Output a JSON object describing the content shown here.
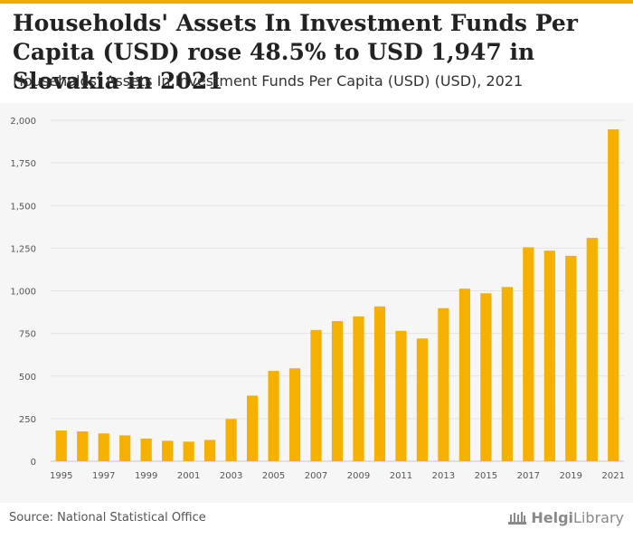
{
  "title": "Households' Assets In Investment Funds Per Capita (USD) rose 48.5% to USD 1,947 in Slovakia in 2021",
  "subtitle": "Households' Assets In Investment Funds Per Capita (USD) (USD), 2021",
  "source": "Source: National Statistical Office",
  "logo": {
    "part1": "Helgi",
    "part2": "Library"
  },
  "colors": {
    "bar": "#f5b000",
    "accent": "#f2ae00",
    "grid": "#e3e3e3",
    "panel": "#f6f6f6"
  },
  "chart_data": {
    "type": "bar",
    "title": "Households' Assets In Investment Funds Per Capita (USD) (USD), 2021",
    "xlabel": "",
    "ylabel": "",
    "ylim": [
      0,
      2000
    ],
    "yticks": [
      0,
      250,
      500,
      750,
      1000,
      1250,
      1500,
      1750,
      2000
    ],
    "ytick_labels": [
      "0",
      "250",
      "500",
      "750",
      "1,000",
      "1,250",
      "1,500",
      "1,750",
      "2,000"
    ],
    "categories": [
      "1995",
      "1996",
      "1997",
      "1998",
      "1999",
      "2000",
      "2001",
      "2002",
      "2003",
      "2004",
      "2005",
      "2006",
      "2007",
      "2008",
      "2009",
      "2010",
      "2011",
      "2012",
      "2013",
      "2014",
      "2015",
      "2016",
      "2017",
      "2018",
      "2019",
      "2020",
      "2021"
    ],
    "xtick_labels": [
      "1995",
      "1997",
      "1999",
      "2001",
      "2003",
      "2005",
      "2007",
      "2009",
      "2011",
      "2013",
      "2015",
      "2017",
      "2019",
      "2021"
    ],
    "values": [
      180,
      175,
      163,
      152,
      133,
      120,
      115,
      125,
      248,
      385,
      530,
      545,
      770,
      822,
      850,
      908,
      765,
      720,
      898,
      1012,
      985,
      1022,
      1255,
      1235,
      1205,
      1310,
      1947
    ],
    "grid": true,
    "legend": "none"
  }
}
